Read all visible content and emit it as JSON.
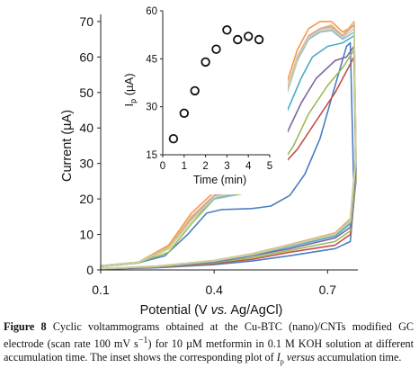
{
  "chart_data": [
    {
      "type": "line",
      "ylabel": "Current (µA)",
      "xlabel": "Potential (V vs. Ag/AgCl)",
      "xlabel_parts": [
        "Potential (V ",
        "vs.",
        " Ag/AgCl)"
      ],
      "xlim": [
        0.1,
        0.78
      ],
      "ylim": [
        0,
        72
      ],
      "x_ticks": [
        "0.1",
        "0.4",
        "0.7"
      ],
      "y_ticks": [
        "0",
        "10",
        "20",
        "30",
        "40",
        "50",
        "60",
        "70"
      ],
      "series": [
        {
          "color": "#4a7fc1",
          "forward": [
            [
              0.1,
              1
            ],
            [
              0.2,
              2
            ],
            [
              0.27,
              4
            ],
            [
              0.33,
              10
            ],
            [
              0.38,
              16
            ],
            [
              0.42,
              17
            ],
            [
              0.5,
              17.3
            ],
            [
              0.55,
              18
            ],
            [
              0.6,
              21
            ],
            [
              0.64,
              27
            ],
            [
              0.68,
              37
            ],
            [
              0.72,
              52
            ],
            [
              0.75,
              63
            ],
            [
              0.76,
              64
            ]
          ],
          "reverse": [
            [
              0.76,
              64
            ],
            [
              0.77,
              20
            ],
            [
              0.76,
              8
            ],
            [
              0.72,
              6
            ],
            [
              0.6,
              4
            ],
            [
              0.5,
              2.5
            ],
            [
              0.4,
              1.5
            ],
            [
              0.25,
              0.6
            ],
            [
              0.1,
              0.2
            ]
          ]
        },
        {
          "color": "#c0504d",
          "forward": [
            [
              0.1,
              1
            ],
            [
              0.2,
              2
            ],
            [
              0.28,
              6
            ],
            [
              0.34,
              15
            ],
            [
              0.4,
              21
            ],
            [
              0.44,
              22.5
            ],
            [
              0.5,
              24
            ],
            [
              0.56,
              27
            ],
            [
              0.62,
              34
            ],
            [
              0.67,
              42
            ],
            [
              0.72,
              50
            ],
            [
              0.75,
              56
            ],
            [
              0.77,
              60
            ]
          ],
          "reverse": [
            [
              0.77,
              60
            ],
            [
              0.775,
              25
            ],
            [
              0.76,
              10
            ],
            [
              0.72,
              7
            ],
            [
              0.6,
              5
            ],
            [
              0.5,
              3
            ],
            [
              0.4,
              1.8
            ],
            [
              0.25,
              0.7
            ],
            [
              0.1,
              0.3
            ]
          ]
        },
        {
          "color": "#9bbb59",
          "forward": [
            [
              0.1,
              1
            ],
            [
              0.2,
              2
            ],
            [
              0.28,
              5
            ],
            [
              0.34,
              13
            ],
            [
              0.4,
              20
            ],
            [
              0.45,
              21
            ],
            [
              0.5,
              22
            ],
            [
              0.56,
              27
            ],
            [
              0.61,
              35
            ],
            [
              0.65,
              44
            ],
            [
              0.7,
              52
            ],
            [
              0.74,
              57
            ],
            [
              0.77,
              62
            ]
          ],
          "reverse": [
            [
              0.77,
              62
            ],
            [
              0.775,
              26
            ],
            [
              0.76,
              11
            ],
            [
              0.72,
              8
            ],
            [
              0.6,
              5.5
            ],
            [
              0.5,
              3.5
            ],
            [
              0.4,
              2
            ],
            [
              0.25,
              0.8
            ],
            [
              0.1,
              0.3
            ]
          ]
        },
        {
          "color": "#8064a2",
          "forward": [
            [
              0.1,
              1
            ],
            [
              0.2,
              2
            ],
            [
              0.28,
              6
            ],
            [
              0.34,
              14
            ],
            [
              0.4,
              21
            ],
            [
              0.45,
              22
            ],
            [
              0.5,
              24
            ],
            [
              0.55,
              30
            ],
            [
              0.59,
              38
            ],
            [
              0.63,
              47
            ],
            [
              0.67,
              54
            ],
            [
              0.72,
              59
            ],
            [
              0.75,
              60
            ],
            [
              0.77,
              63
            ]
          ],
          "reverse": [
            [
              0.77,
              63
            ],
            [
              0.775,
              28
            ],
            [
              0.76,
              12
            ],
            [
              0.72,
              9
            ],
            [
              0.6,
              6
            ],
            [
              0.5,
              4
            ],
            [
              0.4,
              2.2
            ],
            [
              0.25,
              0.9
            ],
            [
              0.1,
              0.3
            ]
          ]
        },
        {
          "color": "#4bacc6",
          "forward": [
            [
              0.1,
              1
            ],
            [
              0.2,
              2
            ],
            [
              0.28,
              6
            ],
            [
              0.34,
              14
            ],
            [
              0.4,
              20
            ],
            [
              0.45,
              21.5
            ],
            [
              0.5,
              25
            ],
            [
              0.55,
              34
            ],
            [
              0.59,
              44
            ],
            [
              0.63,
              54
            ],
            [
              0.66,
              60
            ],
            [
              0.7,
              63
            ],
            [
              0.74,
              64
            ],
            [
              0.77,
              66
            ]
          ],
          "reverse": [
            [
              0.77,
              66
            ],
            [
              0.775,
              30
            ],
            [
              0.76,
              13
            ],
            [
              0.72,
              9.5
            ],
            [
              0.6,
              6.5
            ],
            [
              0.5,
              4.2
            ],
            [
              0.4,
              2.4
            ],
            [
              0.25,
              1
            ],
            [
              0.1,
              0.3
            ]
          ]
        },
        {
          "color": "#f79646",
          "forward": [
            [
              0.1,
              1.2
            ],
            [
              0.2,
              2.2
            ],
            [
              0.28,
              7
            ],
            [
              0.34,
              16
            ],
            [
              0.4,
              22
            ],
            [
              0.45,
              22.5
            ],
            [
              0.5,
              27
            ],
            [
              0.55,
              40
            ],
            [
              0.59,
              52
            ],
            [
              0.62,
              62
            ],
            [
              0.65,
              68
            ],
            [
              0.68,
              70
            ],
            [
              0.71,
              70
            ],
            [
              0.74,
              67
            ],
            [
              0.77,
              69
            ]
          ],
          "reverse": [
            [
              0.77,
              69
            ],
            [
              0.775,
              32
            ],
            [
              0.76,
              14
            ],
            [
              0.72,
              10
            ],
            [
              0.6,
              7
            ],
            [
              0.5,
              4.5
            ],
            [
              0.4,
              2.6
            ],
            [
              0.25,
              1.1
            ],
            [
              0.1,
              0.4
            ]
          ]
        },
        {
          "color": "#e8b878",
          "forward": [
            [
              0.1,
              1.2
            ],
            [
              0.2,
              2.2
            ],
            [
              0.28,
              6.5
            ],
            [
              0.34,
              15
            ],
            [
              0.4,
              21
            ],
            [
              0.45,
              22
            ],
            [
              0.5,
              26
            ],
            [
              0.55,
              38
            ],
            [
              0.59,
              50
            ],
            [
              0.62,
              60
            ],
            [
              0.65,
              66
            ],
            [
              0.68,
              68
            ],
            [
              0.71,
              69
            ],
            [
              0.74,
              66
            ],
            [
              0.77,
              70
            ]
          ],
          "reverse": [
            [
              0.77,
              70
            ],
            [
              0.775,
              33
            ],
            [
              0.76,
              14.5
            ],
            [
              0.72,
              10.5
            ],
            [
              0.6,
              7.2
            ],
            [
              0.5,
              4.6
            ],
            [
              0.4,
              2.7
            ],
            [
              0.25,
              1.1
            ],
            [
              0.1,
              0.4
            ]
          ]
        },
        {
          "color": "#95b3d7",
          "forward": [
            [
              0.1,
              1.1
            ],
            [
              0.2,
              2.1
            ],
            [
              0.28,
              6
            ],
            [
              0.34,
              14
            ],
            [
              0.4,
              20
            ],
            [
              0.45,
              21
            ],
            [
              0.5,
              25
            ],
            [
              0.55,
              36
            ],
            [
              0.59,
              49
            ],
            [
              0.62,
              59
            ],
            [
              0.65,
              65
            ],
            [
              0.68,
              67
            ],
            [
              0.71,
              67.5
            ],
            [
              0.74,
              65
            ],
            [
              0.77,
              67
            ]
          ],
          "reverse": [
            [
              0.77,
              67
            ],
            [
              0.775,
              31
            ],
            [
              0.76,
              13.5
            ],
            [
              0.72,
              10
            ],
            [
              0.6,
              6.8
            ],
            [
              0.5,
              4.3
            ],
            [
              0.4,
              2.5
            ],
            [
              0.25,
              1
            ],
            [
              0.1,
              0.35
            ]
          ]
        },
        {
          "color": "#d9a0a0",
          "forward": [
            [
              0.1,
              1.1
            ],
            [
              0.2,
              2.1
            ],
            [
              0.28,
              6
            ],
            [
              0.34,
              14.5
            ],
            [
              0.4,
              21
            ],
            [
              0.45,
              22
            ],
            [
              0.5,
              26
            ],
            [
              0.55,
              37
            ],
            [
              0.59,
              50
            ],
            [
              0.62,
              60
            ],
            [
              0.65,
              66
            ],
            [
              0.68,
              68
            ],
            [
              0.71,
              68.5
            ],
            [
              0.74,
              66
            ],
            [
              0.77,
              69
            ]
          ],
          "reverse": [
            [
              0.77,
              69
            ],
            [
              0.775,
              32
            ],
            [
              0.76,
              14
            ],
            [
              0.72,
              10.2
            ],
            [
              0.6,
              7
            ],
            [
              0.5,
              4.4
            ],
            [
              0.4,
              2.6
            ],
            [
              0.25,
              1.05
            ],
            [
              0.1,
              0.38
            ]
          ]
        },
        {
          "color": "#c4d79b",
          "forward": [
            [
              0.1,
              1.1
            ],
            [
              0.2,
              2.1
            ],
            [
              0.28,
              6
            ],
            [
              0.34,
              14
            ],
            [
              0.4,
              20.5
            ],
            [
              0.45,
              21.5
            ],
            [
              0.5,
              25.5
            ],
            [
              0.55,
              36.5
            ],
            [
              0.59,
              49.5
            ],
            [
              0.62,
              59.5
            ],
            [
              0.65,
              65.5
            ],
            [
              0.68,
              67.5
            ],
            [
              0.71,
              68
            ],
            [
              0.74,
              65.5
            ],
            [
              0.77,
              68
            ]
          ],
          "reverse": [
            [
              0.77,
              68
            ],
            [
              0.775,
              31.5
            ],
            [
              0.76,
              13.8
            ],
            [
              0.72,
              10.1
            ],
            [
              0.6,
              6.9
            ],
            [
              0.5,
              4.35
            ],
            [
              0.4,
              2.55
            ],
            [
              0.25,
              1.02
            ],
            [
              0.1,
              0.36
            ]
          ]
        }
      ]
    },
    {
      "type": "scatter",
      "xlabel": "Time (min)",
      "ylabel": "Iₚ (µA)",
      "ylabel_main": "I",
      "ylabel_sub": "p",
      "ylabel_rest": " (µA)",
      "xlim": [
        0,
        5
      ],
      "ylim": [
        15,
        60
      ],
      "x_ticks": [
        "0",
        "1",
        "2",
        "3",
        "4",
        "5"
      ],
      "y_ticks": [
        "15",
        "30",
        "45",
        "60"
      ],
      "x": [
        0.5,
        1.0,
        1.5,
        2.0,
        2.5,
        3.0,
        3.5,
        4.0,
        4.5
      ],
      "y": [
        20,
        28,
        35,
        44,
        48,
        54,
        51,
        52,
        51
      ]
    }
  ],
  "caption": {
    "label": "Figure 8",
    "text_1": "  Cyclic voltammograms obtained at the Cu-BTC (nano)/CNTs modified GC electrode (scan rate 100 mV s",
    "unit_sup": "−1",
    "text_2": ") for 10 µM metformin in 0.1 M KOH solution at different accumulation time. The inset shows the corresponding plot of ",
    "ip_main": "I",
    "ip_sub": "p",
    "versus": "versus",
    "text_3": " accumulation time."
  }
}
